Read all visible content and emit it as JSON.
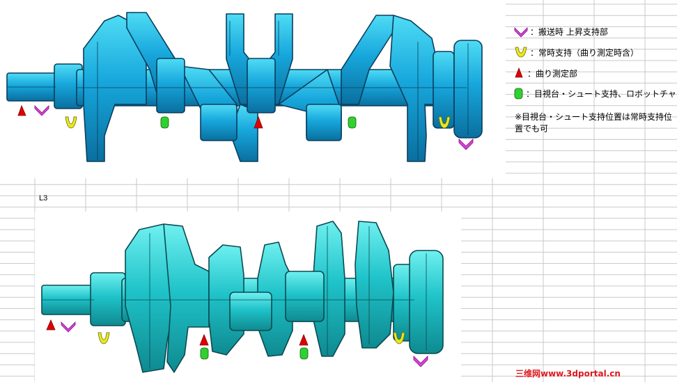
{
  "sheet": {
    "cell_label": "L3",
    "grid_color": "#c8c8c8"
  },
  "legend": {
    "items": [
      {
        "label": "：搬送時 上昇支持部",
        "color": "#e040e0",
        "icon": "magenta-v-marker-icon"
      },
      {
        "label": "：常時支持（曲り測定時含）",
        "color": "#e8e820",
        "icon": "yellow-u-marker-icon"
      },
      {
        "label": "：曲り測定部",
        "color": "#e00000",
        "icon": "red-triangle-marker-icon"
      },
      {
        "label": "：目視台・シュート支持、ロボットチャック",
        "color": "#30d030",
        "icon": "green-cup-marker-icon"
      }
    ],
    "note_line1": "※目視台・シュート支持位置は常時支持位",
    "note_line2": "置でも可"
  },
  "top_crankshaft": {
    "body_color": "#17a7dc",
    "edge_color": "#0b3d5c",
    "highlight": "#35d8f0"
  },
  "bottom_crankshaft": {
    "body_color": "#1fc3c9",
    "edge_color": "#0a4a50",
    "highlight": "#4fe4e8"
  },
  "watermark": {
    "text": "三维网www.3dportal.cn",
    "color": "#e0181e"
  }
}
